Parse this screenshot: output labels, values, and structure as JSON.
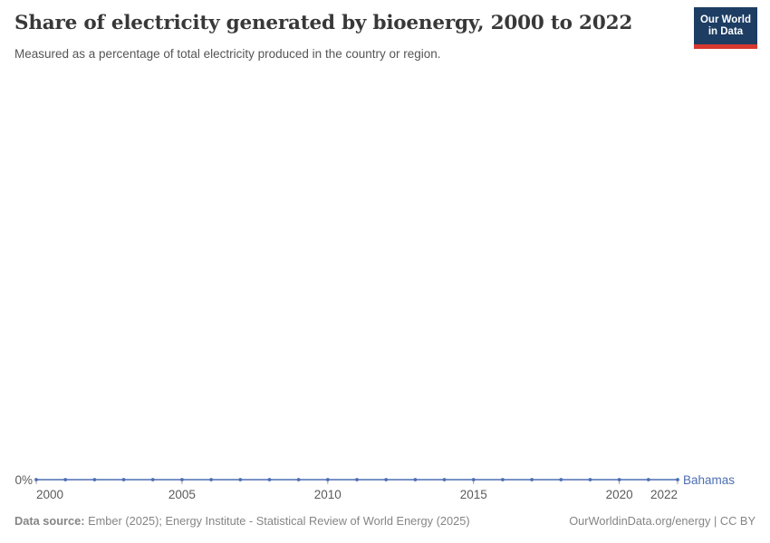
{
  "header": {
    "title": "Share of electricity generated by bioenergy, 2000 to 2022",
    "subtitle": "Measured as a percentage of total electricity produced in the country or region.",
    "logo": {
      "line1": "Our World",
      "line2": "in Data",
      "bg_color": "#1d3d63",
      "bar_color": "#d6372e"
    }
  },
  "chart_data": {
    "type": "line",
    "title": "Share of electricity generated by bioenergy, 2000 to 2022",
    "xlabel": "",
    "ylabel": "",
    "xlim": [
      2000,
      2022
    ],
    "grid": false,
    "legend_position": "end-of-line",
    "x_ticks": [
      2000,
      2005,
      2010,
      2015,
      2020,
      2022
    ],
    "x_tick_labels": [
      "2000",
      "2005",
      "2010",
      "2015",
      "2020",
      "2022"
    ],
    "y_tick_labels": [
      "0%"
    ],
    "series": [
      {
        "name": "Bahamas",
        "color": "#4d6eb4",
        "x": [
          2000,
          2001,
          2002,
          2003,
          2004,
          2005,
          2006,
          2007,
          2008,
          2009,
          2010,
          2011,
          2012,
          2013,
          2014,
          2015,
          2016,
          2017,
          2018,
          2019,
          2020,
          2021,
          2022
        ],
        "values": [
          0,
          0,
          0,
          0,
          0,
          0,
          0,
          0,
          0,
          0,
          0,
          0,
          0,
          0,
          0,
          0,
          0,
          0,
          0,
          0,
          0,
          0,
          0
        ]
      }
    ],
    "colors": {
      "line": "#4d6eb4",
      "axis_text": "#5b5b5b",
      "tick": "#a1a1a1"
    }
  },
  "footer": {
    "source_label": "Data source:",
    "source_text": "Ember (2025); Energy Institute - Statistical Review of World Energy (2025)",
    "attribution": "OurWorldinData.org/energy | CC BY"
  }
}
